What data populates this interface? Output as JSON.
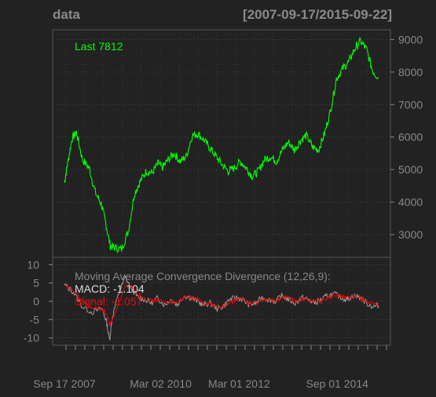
{
  "header": {
    "title": "data",
    "date_range": "[2007-09-17/2015-09-22]"
  },
  "colors": {
    "background": "#222222",
    "grid": "#444444",
    "axis_text": "#888888",
    "price_line": "#00ff00",
    "macd_line": "#aaaaaa",
    "signal_line": "#ff0000",
    "frame": "#555555"
  },
  "chart_data": [
    {
      "type": "line",
      "name": "price-panel",
      "last_label": "Last 7812",
      "ylim": [
        2300,
        9300
      ],
      "yticks": [
        3000,
        4000,
        5000,
        6000,
        7000,
        8000,
        9000
      ],
      "grid": true,
      "series": [
        {
          "name": "data",
          "x": [
            "2007-09-17",
            "2007-10-15",
            "2007-11-26",
            "2008-01-07",
            "2008-03-03",
            "2008-05-05",
            "2008-06-30",
            "2008-08-25",
            "2008-10-06",
            "2008-11-17",
            "2008-12-29",
            "2009-03-02",
            "2009-05-04",
            "2009-06-29",
            "2009-08-24",
            "2009-10-19",
            "2009-12-14",
            "2010-02-08",
            "2010-03-15",
            "2010-05-10",
            "2010-07-05",
            "2010-08-30",
            "2010-10-25",
            "2010-12-20",
            "2011-02-14",
            "2011-04-11",
            "2011-06-06",
            "2011-08-01",
            "2011-09-26",
            "2011-11-21",
            "2012-01-16",
            "2012-03-12",
            "2012-05-07",
            "2012-07-02",
            "2012-08-27",
            "2012-10-22",
            "2012-12-17",
            "2013-02-11",
            "2013-04-08",
            "2013-06-03",
            "2013-07-29",
            "2013-09-23",
            "2013-11-18",
            "2014-01-13",
            "2014-03-10",
            "2014-05-05",
            "2014-06-30",
            "2014-08-25",
            "2014-10-20",
            "2014-12-15",
            "2015-02-09",
            "2015-04-06",
            "2015-06-01",
            "2015-07-27",
            "2015-09-22"
          ],
          "y": [
            4600,
            5150,
            5950,
            6150,
            5300,
            5050,
            4300,
            3950,
            3350,
            2650,
            2600,
            2550,
            3100,
            4250,
            4650,
            4950,
            4900,
            5200,
            5050,
            5300,
            5500,
            5250,
            5400,
            6050,
            6100,
            5900,
            5650,
            5400,
            5150,
            4950,
            5050,
            5250,
            5050,
            4800,
            4950,
            5300,
            5400,
            5250,
            5600,
            5850,
            5600,
            5900,
            6050,
            5700,
            5600,
            6100,
            6800,
            7800,
            8100,
            8300,
            8700,
            8950,
            8700,
            8050,
            7812
          ]
        }
      ]
    },
    {
      "type": "line",
      "name": "macd-panel",
      "title": "Moving Average Convergence Divergence (12,26,9):",
      "macd_label": "MACD: -1.104",
      "signal_label": "Signal: -1.057",
      "ylim": [
        -12,
        12
      ],
      "yticks": [
        -10,
        -5,
        0,
        5,
        10
      ],
      "grid": true,
      "x_tick_labels": [
        "Sep 17 2007",
        "Mar 02 2010",
        "Mar 01 2012",
        "Sep 01 2014"
      ],
      "x_tick_dates": [
        "2007-09-17",
        "2010-03-02",
        "2012-03-01",
        "2014-09-01"
      ],
      "series": [
        {
          "name": "MACD",
          "x": [
            "2007-09-17",
            "2007-12-10",
            "2008-03-03",
            "2008-06-02",
            "2008-09-01",
            "2008-10-13",
            "2008-11-10",
            "2008-12-08",
            "2009-02-02",
            "2009-04-06",
            "2009-06-01",
            "2009-08-03",
            "2009-10-05",
            "2009-12-07",
            "2010-02-01",
            "2010-04-05",
            "2010-06-07",
            "2010-08-02",
            "2010-10-04",
            "2010-12-06",
            "2011-02-07",
            "2011-04-04",
            "2011-06-06",
            "2011-08-08",
            "2011-10-03",
            "2011-12-05",
            "2012-02-06",
            "2012-04-02",
            "2012-06-04",
            "2012-08-06",
            "2012-10-01",
            "2012-12-03",
            "2013-02-04",
            "2013-04-01",
            "2013-06-03",
            "2013-08-05",
            "2013-10-07",
            "2013-12-02",
            "2014-02-03",
            "2014-04-07",
            "2014-06-02",
            "2014-08-04",
            "2014-10-06",
            "2014-12-01",
            "2015-02-02",
            "2015-04-06",
            "2015-06-01",
            "2015-08-03",
            "2015-09-22"
          ],
          "y": [
            4.5,
            2.5,
            -1.5,
            -3.0,
            -2.0,
            -5.5,
            -10.5,
            -4.0,
            2.0,
            6.5,
            3.5,
            1.0,
            0.5,
            -0.5,
            1.0,
            -1.0,
            0.5,
            -1.0,
            1.5,
            1.0,
            0.0,
            -1.0,
            -0.5,
            -2.0,
            -1.5,
            0.5,
            1.0,
            0.5,
            -1.0,
            -0.5,
            1.0,
            0.5,
            0.0,
            1.5,
            0.5,
            -0.5,
            1.0,
            0.5,
            -0.5,
            0.5,
            1.5,
            2.0,
            1.0,
            0.5,
            1.5,
            1.0,
            -0.5,
            -1.5,
            -1.104
          ]
        },
        {
          "name": "Signal",
          "x": [
            "2007-09-17",
            "2007-12-10",
            "2008-03-03",
            "2008-06-02",
            "2008-09-01",
            "2008-10-13",
            "2008-11-10",
            "2008-12-08",
            "2009-02-02",
            "2009-04-06",
            "2009-06-01",
            "2009-08-03",
            "2009-10-05",
            "2009-12-07",
            "2010-02-01",
            "2010-04-05",
            "2010-06-07",
            "2010-08-02",
            "2010-10-04",
            "2010-12-06",
            "2011-02-07",
            "2011-04-04",
            "2011-06-06",
            "2011-08-08",
            "2011-10-03",
            "2011-12-05",
            "2012-02-06",
            "2012-04-02",
            "2012-06-04",
            "2012-08-06",
            "2012-10-01",
            "2012-12-03",
            "2013-02-04",
            "2013-04-01",
            "2013-06-03",
            "2013-08-05",
            "2013-10-07",
            "2013-12-02",
            "2014-02-03",
            "2014-04-07",
            "2014-06-02",
            "2014-08-04",
            "2014-10-06",
            "2014-12-01",
            "2015-02-02",
            "2015-04-06",
            "2015-06-01",
            "2015-08-03",
            "2015-09-22"
          ],
          "y": [
            4.0,
            3.0,
            0.0,
            -2.0,
            -2.0,
            -3.5,
            -6.5,
            -5.0,
            -0.5,
            4.0,
            4.0,
            2.0,
            1.0,
            0.0,
            0.5,
            -0.5,
            0.0,
            -0.5,
            1.0,
            1.0,
            0.5,
            -0.5,
            -0.5,
            -1.5,
            -1.5,
            -0.5,
            0.5,
            0.5,
            -0.5,
            -0.5,
            0.5,
            0.5,
            0.0,
            1.0,
            1.0,
            0.0,
            0.5,
            0.5,
            0.0,
            0.0,
            1.0,
            1.5,
            1.5,
            0.8,
            1.0,
            1.0,
            0.0,
            -1.0,
            -1.057
          ]
        }
      ]
    }
  ]
}
